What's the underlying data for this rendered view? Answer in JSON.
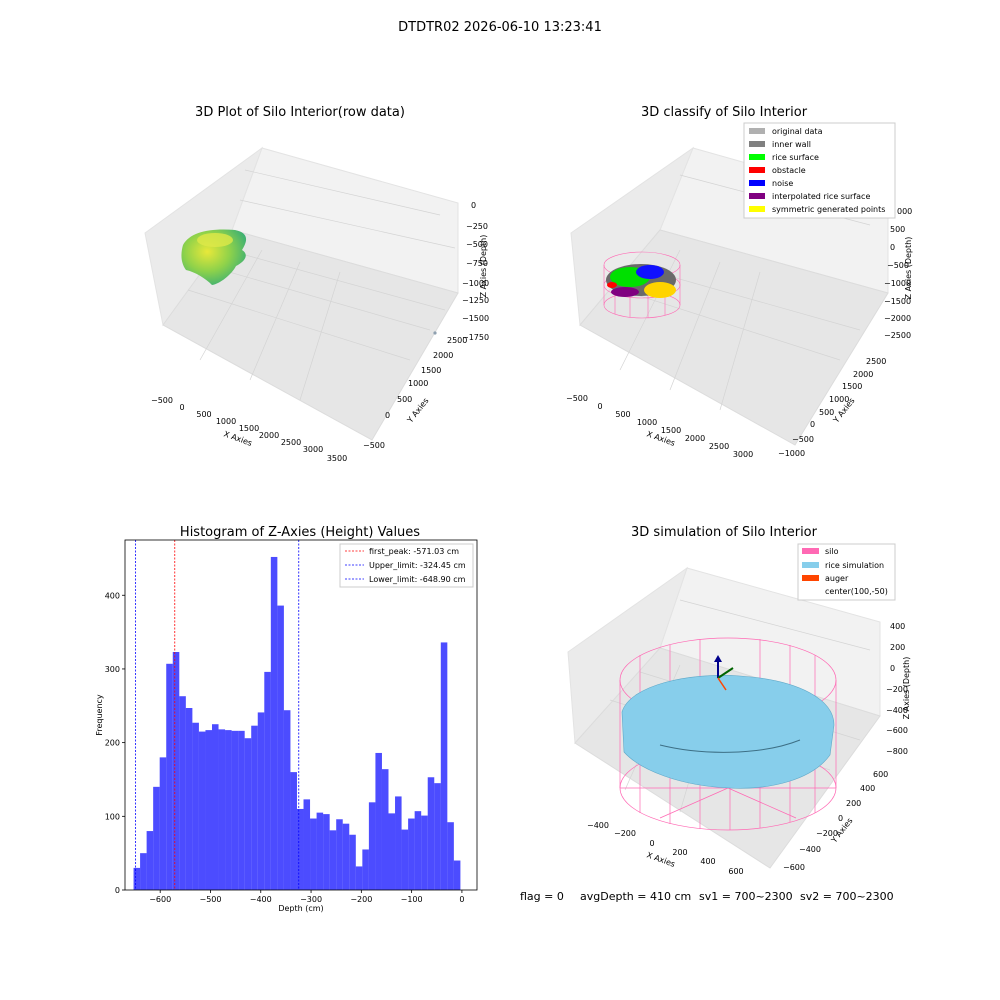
{
  "suptitle": "DTDTR02 2026-06-10 13:23:41",
  "panel1": {
    "title": "3D Plot of Silo Interior(row data)",
    "xlabel": "X Axies",
    "ylabel": "Y Axies",
    "zlabel": "Z Axies (Depth)",
    "xticks": [
      "−500",
      "0",
      "500",
      "1000",
      "1500",
      "2000",
      "2500",
      "3000",
      "3500"
    ],
    "yticks": [
      "−500",
      "0",
      "500",
      "1000",
      "1500",
      "2000",
      "2500"
    ],
    "zticks": [
      "0",
      "−250",
      "−500",
      "−750",
      "−1000",
      "−1250",
      "−1500",
      "−1750"
    ]
  },
  "panel2": {
    "title": "3D classify of Silo Interior",
    "xlabel": "X Axies",
    "ylabel": "Y Axies",
    "zlabel": "Z Axies (Depth)",
    "xticks": [
      "−500",
      "0",
      "500",
      "1000",
      "1500",
      "2000",
      "2500",
      "3000"
    ],
    "yticks": [
      "−1000",
      "−500",
      "0",
      "500",
      "1000",
      "1500",
      "2000",
      "2500"
    ],
    "zticks": [
      "500",
      "0",
      "−500",
      "−1000",
      "−1500",
      "−2000",
      "−2500"
    ],
    "legend": [
      {
        "label": "original data",
        "color": "#b0b0b0"
      },
      {
        "label": "inner wall",
        "color": "#808080"
      },
      {
        "label": "rice surface",
        "color": "#00ff00"
      },
      {
        "label": "obstacle",
        "color": "#ff0000"
      },
      {
        "label": "noise",
        "color": "#0000ff"
      },
      {
        "label": "interpolated rice surface",
        "color": "#800080"
      },
      {
        "label": "symmetric generated points",
        "color": "#ffff00"
      }
    ],
    "legend_ztick_partial": "000"
  },
  "panel3": {
    "title": "Histogram of Z-Axies (Height) Values",
    "xlabel": "Depth (cm)",
    "ylabel": "Frequency",
    "xticks": [
      "−600",
      "−500",
      "−400",
      "−300",
      "−200",
      "−100",
      "0"
    ],
    "yticks": [
      "0",
      "100",
      "200",
      "300",
      "400"
    ],
    "legend": [
      {
        "label": "first_peak: -571.03 cm",
        "color": "#ff0000"
      },
      {
        "label": "Upper_limit: -324.45 cm",
        "color": "#0000ff"
      },
      {
        "label": "Lower_limit: -648.90 cm",
        "color": "#0000ff"
      }
    ]
  },
  "panel4": {
    "title": "3D simulation of Silo Interior",
    "xlabel": "X Axies",
    "ylabel": "Y Axies",
    "zlabel": "Z Axies (Depth)",
    "xticks": [
      "−400",
      "−200",
      "0",
      "200",
      "400",
      "600"
    ],
    "yticks": [
      "−600",
      "−400",
      "−200",
      "0",
      "200",
      "400",
      "600"
    ],
    "zticks": [
      "400",
      "200",
      "0",
      "−200",
      "−400",
      "−600",
      "−800"
    ],
    "legend": [
      {
        "label": "silo",
        "color": "#ff69b4"
      },
      {
        "label": "rice simulation",
        "color": "#87ceeb"
      },
      {
        "label": "auger",
        "color": "#ff4500"
      },
      {
        "label": "center(100,-50)",
        "color": ""
      }
    ]
  },
  "footer": {
    "flag": "flag = 0",
    "avg": "avgDepth = 410 cm",
    "sv1": "sv1 = 700~2300",
    "sv2": "sv2 = 700~2300"
  },
  "chart_data": [
    {
      "type": "scatter",
      "title": "3D Plot of Silo Interior(row data)",
      "xlabel": "X Axies",
      "ylabel": "Y Axies",
      "zlabel": "Z Axies (Depth)",
      "xlim": [
        -700,
        3600
      ],
      "ylim": [
        -700,
        2700
      ],
      "zlim": [
        -1800,
        50
      ]
    },
    {
      "type": "scatter",
      "title": "3D classify of Silo Interior",
      "xlabel": "X Axies",
      "ylabel": "Y Axies",
      "zlabel": "Z Axies (Depth)",
      "xlim": [
        -700,
        3200
      ],
      "ylim": [
        -1200,
        2800
      ],
      "zlim": [
        -2600,
        1100
      ],
      "series": [
        {
          "name": "original data"
        },
        {
          "name": "inner wall"
        },
        {
          "name": "rice surface"
        },
        {
          "name": "obstacle"
        },
        {
          "name": "noise"
        },
        {
          "name": "interpolated rice surface"
        },
        {
          "name": "symmetric generated points"
        }
      ]
    },
    {
      "type": "bar",
      "title": "Histogram of Z-Axies (Height) Values",
      "xlabel": "Depth (cm)",
      "ylabel": "Frequency",
      "xlim": [
        -670,
        30
      ],
      "ylim": [
        0,
        475
      ],
      "bin_width": 13,
      "bin_starts": [
        -653,
        -640,
        -627,
        -614,
        -601,
        -588,
        -575,
        -562,
        -549,
        -536,
        -523,
        -510,
        -497,
        -484,
        -471,
        -458,
        -445,
        -432,
        -419,
        -406,
        -393,
        -380,
        -367,
        -354,
        -341,
        -328,
        -315,
        -302,
        -289,
        -276,
        -263,
        -250,
        -237,
        -224,
        -211,
        -198,
        -185,
        -172,
        -159,
        -146,
        -133,
        -120,
        -107,
        -94,
        -81,
        -68,
        -55,
        -42,
        -29,
        -16
      ],
      "values": [
        30,
        50,
        80,
        140,
        180,
        307,
        323,
        263,
        247,
        227,
        215,
        217,
        225,
        218,
        217,
        216,
        216,
        206,
        223,
        241,
        296,
        452,
        386,
        244,
        160,
        110,
        123,
        97,
        105,
        103,
        81,
        96,
        90,
        75,
        32,
        55,
        119,
        186,
        164,
        104,
        127,
        82,
        97,
        107,
        101,
        153,
        145,
        336,
        92,
        40
      ],
      "vlines": [
        {
          "name": "first_peak",
          "x": -571.03,
          "color": "#ff0000"
        },
        {
          "name": "Upper_limit",
          "x": -324.45,
          "color": "#0000ff"
        },
        {
          "name": "Lower_limit",
          "x": -648.9,
          "color": "#0000ff"
        }
      ]
    },
    {
      "type": "scatter",
      "title": "3D simulation of Silo Interior",
      "xlabel": "X Axies",
      "ylabel": "Y Axies",
      "zlabel": "Z Axies (Depth)",
      "xlim": [
        -550,
        750
      ],
      "ylim": [
        -700,
        700
      ],
      "zlim": [
        -900,
        480
      ],
      "series": [
        {
          "name": "silo"
        },
        {
          "name": "rice simulation"
        },
        {
          "name": "auger"
        },
        {
          "name": "center(100,-50)"
        }
      ]
    }
  ]
}
